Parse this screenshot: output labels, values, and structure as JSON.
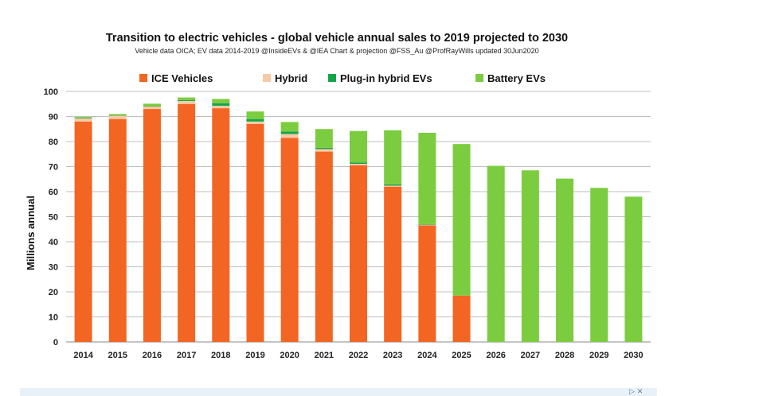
{
  "chart_data": {
    "type": "bar",
    "stacked": true,
    "title": "Transition to electric vehicles  - global vehicle annual sales to 2019 projected to 2030",
    "subtitle": "Vehicle data OICA; EV data 2014-2019 @InsideEVs & @IEA  Chart & projection @FSS_Au @ProfRayWills updated 30Jun2020",
    "xlabel": "",
    "ylabel": "Millions annual",
    "ylim": [
      0,
      100
    ],
    "yticks": [
      "0",
      "10",
      "20",
      "30",
      "40",
      "50",
      "60",
      "70",
      "80",
      "90",
      "100"
    ],
    "grid": true,
    "legend_position": "top",
    "categories": [
      "2014",
      "2015",
      "2016",
      "2017",
      "2018",
      "2019",
      "2020",
      "2021",
      "2022",
      "2023",
      "2024",
      "2025",
      "2026",
      "2027",
      "2028",
      "2029",
      "2030"
    ],
    "series": [
      {
        "name": "ICE Vehicles",
        "color": "#f26522",
        "values": [
          88,
          89,
          93,
          95,
          93.3,
          87,
          81.5,
          76,
          70.5,
          62,
          46.5,
          18.5,
          0,
          0,
          0,
          0,
          0
        ]
      },
      {
        "name": "Hybrid",
        "color": "#f9c9a4",
        "values": [
          1.2,
          1.4,
          1.0,
          1.2,
          1.0,
          1.0,
          1.5,
          1.0,
          0.6,
          0.4,
          0.3,
          0,
          0,
          0,
          0,
          0,
          0
        ]
      },
      {
        "name": "Plug-in hybrid EVs",
        "color": "#13a54a",
        "values": [
          0.2,
          0.1,
          0.1,
          0.4,
          1.0,
          1.0,
          1.0,
          0.5,
          0.5,
          0.5,
          0.2,
          0,
          0,
          0,
          0,
          0,
          0
        ]
      },
      {
        "name": "Battery EVs",
        "color": "#7ccc40",
        "values": [
          0.4,
          0.5,
          1.0,
          1.0,
          1.7,
          3.0,
          3.8,
          7.5,
          12.6,
          21.6,
          36.5,
          60.5,
          70.3,
          68.5,
          65.2,
          61.5,
          58
        ]
      }
    ]
  },
  "footer": {
    "icons": "▷ ✕"
  }
}
